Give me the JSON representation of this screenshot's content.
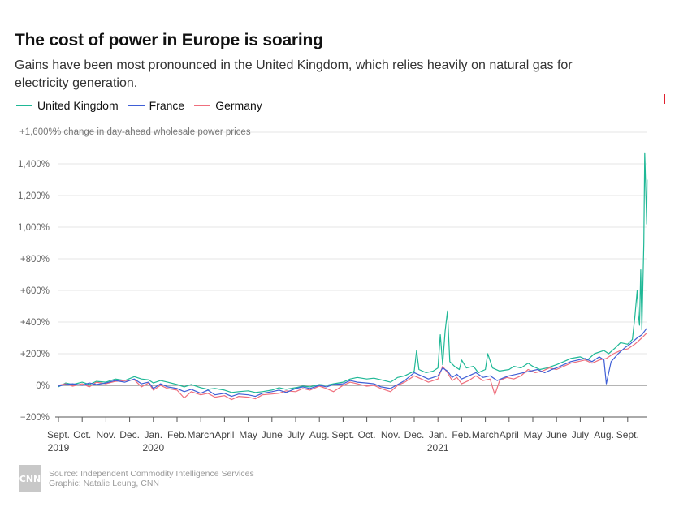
{
  "header": {
    "title": "The cost of power in Europe is soaring",
    "subtitle": "Gains have been most pronounced in the United Kingdom, which relies heavily on natural gas for electricity generation."
  },
  "footer": {
    "logo": "CNN",
    "source": "Source: Independent Commodity Intelligence Services",
    "credit": "Graphic: Natalie Leung, CNN"
  },
  "chart_data": {
    "type": "line",
    "title": "The cost of power in Europe is soaring",
    "ylabel": "% change in day-ahead wholesale power prices",
    "ylim": [
      -200,
      1600
    ],
    "yticks": [
      -200,
      0,
      200,
      400,
      600,
      800,
      1000,
      1200,
      1400,
      1600
    ],
    "ytick_labels": [
      "−200%",
      "0%",
      "+200%",
      "+400%",
      "+600%",
      "+800%",
      "1,000%",
      "1,200%",
      "1,400%",
      "+1,600%"
    ],
    "xlim": [
      0,
      24.7
    ],
    "xticks": [
      {
        "m": 0,
        "label": "Sept.",
        "year": "2019"
      },
      {
        "m": 1,
        "label": "Oct."
      },
      {
        "m": 2,
        "label": "Nov."
      },
      {
        "m": 3,
        "label": "Dec."
      },
      {
        "m": 4,
        "label": "Jan.",
        "year": "2020"
      },
      {
        "m": 5,
        "label": "Feb."
      },
      {
        "m": 6,
        "label": "March"
      },
      {
        "m": 7,
        "label": "April"
      },
      {
        "m": 8,
        "label": "May"
      },
      {
        "m": 9,
        "label": "June"
      },
      {
        "m": 10,
        "label": "July"
      },
      {
        "m": 11,
        "label": "Aug."
      },
      {
        "m": 12,
        "label": "Sept."
      },
      {
        "m": 13,
        "label": "Oct."
      },
      {
        "m": 14,
        "label": "Nov."
      },
      {
        "m": 15,
        "label": "Dec."
      },
      {
        "m": 16,
        "label": "Jan.",
        "year": "2021"
      },
      {
        "m": 17,
        "label": "Feb."
      },
      {
        "m": 18,
        "label": "March"
      },
      {
        "m": 19,
        "label": "April"
      },
      {
        "m": 20,
        "label": "May"
      },
      {
        "m": 21,
        "label": "June"
      },
      {
        "m": 22,
        "label": "July"
      },
      {
        "m": 23,
        "label": "Aug."
      },
      {
        "m": 24,
        "label": "Sept."
      }
    ],
    "legend_position": "top-left",
    "series": [
      {
        "name": "United Kingdom",
        "color": "#1fb896",
        "points": [
          [
            0,
            -10
          ],
          [
            0.3,
            15
          ],
          [
            0.6,
            5
          ],
          [
            1,
            20
          ],
          [
            1.3,
            5
          ],
          [
            1.6,
            25
          ],
          [
            2,
            20
          ],
          [
            2.4,
            40
          ],
          [
            2.8,
            30
          ],
          [
            3.2,
            55
          ],
          [
            3.5,
            40
          ],
          [
            3.8,
            35
          ],
          [
            4,
            15
          ],
          [
            4.3,
            30
          ],
          [
            4.6,
            20
          ],
          [
            5,
            5
          ],
          [
            5.3,
            -10
          ],
          [
            5.6,
            5
          ],
          [
            6,
            -15
          ],
          [
            6.3,
            -25
          ],
          [
            6.6,
            -20
          ],
          [
            7,
            -30
          ],
          [
            7.3,
            -45
          ],
          [
            7.6,
            -40
          ],
          [
            8,
            -35
          ],
          [
            8.3,
            -45
          ],
          [
            8.6,
            -40
          ],
          [
            9,
            -30
          ],
          [
            9.3,
            -15
          ],
          [
            9.6,
            -25
          ],
          [
            10,
            -15
          ],
          [
            10.3,
            -5
          ],
          [
            10.6,
            -10
          ],
          [
            11,
            5
          ],
          [
            11.3,
            0
          ],
          [
            11.6,
            10
          ],
          [
            12,
            20
          ],
          [
            12.3,
            40
          ],
          [
            12.6,
            50
          ],
          [
            13,
            40
          ],
          [
            13.3,
            45
          ],
          [
            13.6,
            35
          ],
          [
            14,
            20
          ],
          [
            14.3,
            50
          ],
          [
            14.6,
            60
          ],
          [
            15,
            90
          ],
          [
            15.1,
            220
          ],
          [
            15.2,
            100
          ],
          [
            15.5,
            80
          ],
          [
            15.8,
            90
          ],
          [
            16,
            110
          ],
          [
            16.1,
            320
          ],
          [
            16.2,
            130
          ],
          [
            16.3,
            340
          ],
          [
            16.4,
            470
          ],
          [
            16.5,
            150
          ],
          [
            16.7,
            120
          ],
          [
            16.9,
            100
          ],
          [
            17,
            160
          ],
          [
            17.2,
            110
          ],
          [
            17.5,
            120
          ],
          [
            17.7,
            80
          ],
          [
            18,
            100
          ],
          [
            18.1,
            200
          ],
          [
            18.3,
            110
          ],
          [
            18.6,
            90
          ],
          [
            19,
            100
          ],
          [
            19.2,
            120
          ],
          [
            19.5,
            110
          ],
          [
            19.8,
            140
          ],
          [
            20,
            120
          ],
          [
            20.3,
            100
          ],
          [
            20.6,
            110
          ],
          [
            21,
            130
          ],
          [
            21.3,
            150
          ],
          [
            21.6,
            170
          ],
          [
            22,
            180
          ],
          [
            22.3,
            160
          ],
          [
            22.6,
            200
          ],
          [
            23,
            220
          ],
          [
            23.2,
            200
          ],
          [
            23.5,
            240
          ],
          [
            23.7,
            270
          ],
          [
            24,
            260
          ],
          [
            24.2,
            290
          ],
          [
            24.3,
            430
          ],
          [
            24.4,
            600
          ],
          [
            24.45,
            450
          ],
          [
            24.5,
            380
          ],
          [
            24.55,
            730
          ],
          [
            24.6,
            350
          ],
          [
            24.68,
            900
          ],
          [
            24.72,
            1470
          ],
          [
            24.76,
            1250
          ],
          [
            24.8,
            1020
          ],
          [
            24.82,
            1300
          ]
        ]
      },
      {
        "name": "France",
        "color": "#3f5fd6",
        "points": [
          [
            0,
            -5
          ],
          [
            0.3,
            5
          ],
          [
            0.6,
            10
          ],
          [
            1,
            0
          ],
          [
            1.3,
            15
          ],
          [
            1.6,
            5
          ],
          [
            2,
            15
          ],
          [
            2.4,
            30
          ],
          [
            2.8,
            20
          ],
          [
            3.2,
            40
          ],
          [
            3.5,
            10
          ],
          [
            3.8,
            20
          ],
          [
            4,
            -20
          ],
          [
            4.3,
            10
          ],
          [
            4.6,
            -10
          ],
          [
            5,
            -20
          ],
          [
            5.3,
            -40
          ],
          [
            5.6,
            -25
          ],
          [
            6,
            -50
          ],
          [
            6.3,
            -30
          ],
          [
            6.6,
            -60
          ],
          [
            7,
            -50
          ],
          [
            7.3,
            -70
          ],
          [
            7.6,
            -55
          ],
          [
            8,
            -60
          ],
          [
            8.3,
            -70
          ],
          [
            8.6,
            -50
          ],
          [
            9,
            -40
          ],
          [
            9.3,
            -30
          ],
          [
            9.6,
            -45
          ],
          [
            10,
            -20
          ],
          [
            10.3,
            -10
          ],
          [
            10.6,
            -20
          ],
          [
            11,
            0
          ],
          [
            11.3,
            -10
          ],
          [
            11.6,
            5
          ],
          [
            12,
            10
          ],
          [
            12.3,
            30
          ],
          [
            12.6,
            20
          ],
          [
            13,
            15
          ],
          [
            13.3,
            10
          ],
          [
            13.6,
            -10
          ],
          [
            14,
            -20
          ],
          [
            14.3,
            5
          ],
          [
            14.6,
            30
          ],
          [
            15,
            80
          ],
          [
            15.3,
            60
          ],
          [
            15.6,
            40
          ],
          [
            16,
            60
          ],
          [
            16.2,
            110
          ],
          [
            16.4,
            90
          ],
          [
            16.6,
            50
          ],
          [
            16.8,
            70
          ],
          [
            17,
            40
          ],
          [
            17.3,
            60
          ],
          [
            17.6,
            80
          ],
          [
            17.9,
            50
          ],
          [
            18.2,
            60
          ],
          [
            18.5,
            30
          ],
          [
            18.8,
            50
          ],
          [
            19,
            60
          ],
          [
            19.3,
            70
          ],
          [
            19.6,
            80
          ],
          [
            19.9,
            90
          ],
          [
            20.2,
            100
          ],
          [
            20.5,
            80
          ],
          [
            20.8,
            100
          ],
          [
            21,
            110
          ],
          [
            21.3,
            130
          ],
          [
            21.6,
            150
          ],
          [
            21.9,
            160
          ],
          [
            22.2,
            170
          ],
          [
            22.5,
            150
          ],
          [
            22.8,
            180
          ],
          [
            23,
            160
          ],
          [
            23.1,
            10
          ],
          [
            23.3,
            150
          ],
          [
            23.6,
            200
          ],
          [
            23.9,
            240
          ],
          [
            24.1,
            260
          ],
          [
            24.4,
            300
          ],
          [
            24.6,
            320
          ],
          [
            24.8,
            360
          ]
        ]
      },
      {
        "name": "Germany",
        "color": "#ef6f7d",
        "points": [
          [
            0,
            0
          ],
          [
            0.3,
            10
          ],
          [
            0.6,
            -5
          ],
          [
            1,
            10
          ],
          [
            1.3,
            -10
          ],
          [
            1.6,
            20
          ],
          [
            2,
            10
          ],
          [
            2.4,
            25
          ],
          [
            2.8,
            30
          ],
          [
            3.2,
            35
          ],
          [
            3.5,
            -10
          ],
          [
            3.8,
            15
          ],
          [
            4,
            -30
          ],
          [
            4.3,
            0
          ],
          [
            4.6,
            -20
          ],
          [
            5,
            -30
          ],
          [
            5.3,
            -80
          ],
          [
            5.6,
            -40
          ],
          [
            6,
            -60
          ],
          [
            6.3,
            -50
          ],
          [
            6.6,
            -75
          ],
          [
            7,
            -65
          ],
          [
            7.3,
            -90
          ],
          [
            7.6,
            -70
          ],
          [
            8,
            -75
          ],
          [
            8.3,
            -85
          ],
          [
            8.6,
            -60
          ],
          [
            9,
            -55
          ],
          [
            9.3,
            -50
          ],
          [
            9.6,
            -35
          ],
          [
            10,
            -40
          ],
          [
            10.3,
            -20
          ],
          [
            10.6,
            -30
          ],
          [
            11,
            -5
          ],
          [
            11.3,
            -20
          ],
          [
            11.6,
            -40
          ],
          [
            12,
            0
          ],
          [
            12.3,
            20
          ],
          [
            12.6,
            10
          ],
          [
            13,
            -5
          ],
          [
            13.3,
            0
          ],
          [
            13.6,
            -20
          ],
          [
            14,
            -40
          ],
          [
            14.3,
            0
          ],
          [
            14.6,
            20
          ],
          [
            15,
            60
          ],
          [
            15.3,
            40
          ],
          [
            15.6,
            20
          ],
          [
            16,
            40
          ],
          [
            16.2,
            120
          ],
          [
            16.4,
            80
          ],
          [
            16.6,
            30
          ],
          [
            16.8,
            50
          ],
          [
            17,
            10
          ],
          [
            17.3,
            30
          ],
          [
            17.6,
            60
          ],
          [
            17.9,
            30
          ],
          [
            18.2,
            40
          ],
          [
            18.4,
            -60
          ],
          [
            18.6,
            30
          ],
          [
            18.9,
            50
          ],
          [
            19.2,
            40
          ],
          [
            19.5,
            60
          ],
          [
            19.8,
            100
          ],
          [
            20.1,
            80
          ],
          [
            20.4,
            90
          ],
          [
            20.7,
            110
          ],
          [
            21,
            100
          ],
          [
            21.3,
            120
          ],
          [
            21.6,
            140
          ],
          [
            21.9,
            150
          ],
          [
            22.2,
            160
          ],
          [
            22.5,
            140
          ],
          [
            22.8,
            160
          ],
          [
            23.1,
            170
          ],
          [
            23.4,
            200
          ],
          [
            23.7,
            220
          ],
          [
            24,
            230
          ],
          [
            24.3,
            260
          ],
          [
            24.6,
            300
          ],
          [
            24.8,
            330
          ]
        ]
      }
    ]
  }
}
